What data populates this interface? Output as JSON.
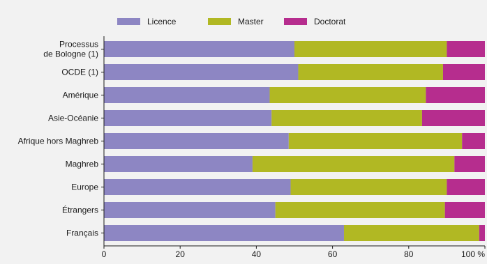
{
  "chart_data": {
    "type": "bar",
    "orientation": "horizontal",
    "stacked": true,
    "legend_position": "top",
    "grid": false,
    "categories": [
      [
        "Processus",
        "de Bologne (1)"
      ],
      [
        "OCDE (1)"
      ],
      [
        "Amérique"
      ],
      [
        "Asie-Océanie"
      ],
      [
        "Afrique hors Maghreb"
      ],
      [
        "Maghreb"
      ],
      [
        "Europe"
      ],
      [
        "Étrangers"
      ],
      [
        "Français"
      ]
    ],
    "series": [
      {
        "name": "Licence",
        "color": "#8d86c3",
        "values": [
          50,
          51,
          43.5,
          44,
          48.5,
          39,
          49,
          45,
          63
        ]
      },
      {
        "name": "Master",
        "color": "#b1b823",
        "values": [
          40,
          38,
          41,
          39.5,
          45.5,
          53,
          41,
          44.5,
          35.5
        ]
      },
      {
        "name": "Doctorat",
        "color": "#b62d8e",
        "values": [
          10,
          11,
          15.5,
          16.5,
          6,
          8,
          10,
          10.5,
          1.5
        ]
      }
    ],
    "xlim": [
      0,
      100
    ],
    "xticks": [
      "0",
      "20",
      "40",
      "60",
      "80",
      "100 %"
    ]
  }
}
